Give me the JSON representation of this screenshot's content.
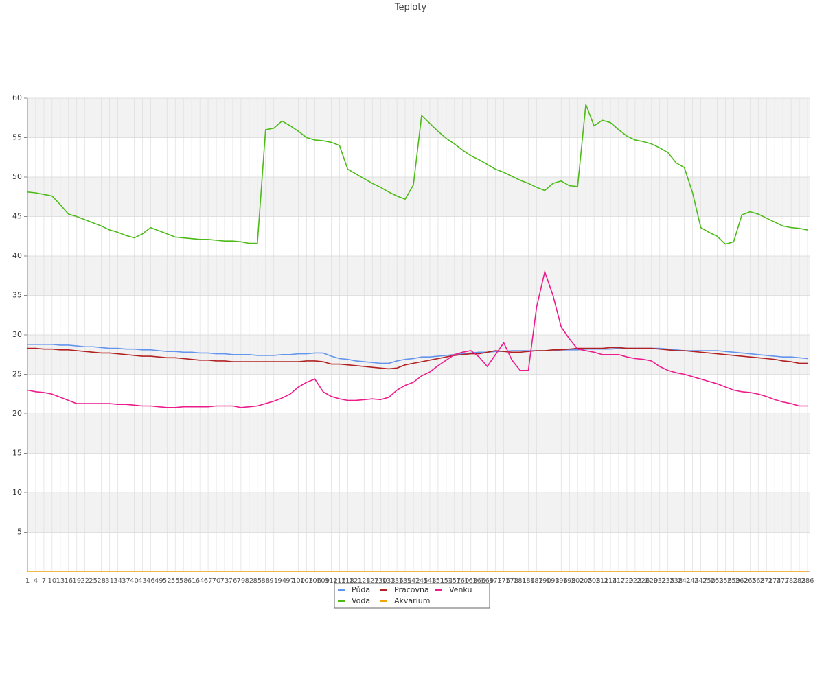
{
  "chart_data": {
    "type": "line",
    "title": "Teploty",
    "x": [
      1,
      4,
      7,
      10,
      13,
      16,
      19,
      22,
      25,
      28,
      31,
      34,
      37,
      40,
      43,
      46,
      49,
      52,
      55,
      58,
      61,
      64,
      67,
      70,
      73,
      76,
      79,
      82,
      85,
      88,
      91,
      94,
      97,
      100,
      103,
      106,
      109,
      112,
      115,
      118,
      121,
      124,
      127,
      130,
      133,
      136,
      139,
      142,
      145,
      148,
      151,
      154,
      157,
      160,
      163,
      166,
      169,
      172,
      175,
      178,
      181,
      184,
      187,
      190,
      193,
      196,
      199,
      202,
      205,
      208,
      211,
      214,
      217,
      220,
      223,
      226,
      229,
      232,
      235,
      238,
      241,
      244,
      247,
      250,
      253,
      256,
      259,
      262,
      265,
      268,
      271,
      274,
      277,
      280,
      283,
      286
    ],
    "xlim": [
      1,
      287
    ],
    "ylim": [
      0,
      60
    ],
    "yticks": [
      5,
      10,
      15,
      20,
      25,
      30,
      35,
      40,
      45,
      50,
      55,
      60
    ],
    "grid": true,
    "legend": "bottom",
    "series": [
      {
        "name": "Půda",
        "color": "#6495ed",
        "values": [
          28.8,
          28.8,
          28.8,
          28.8,
          28.7,
          28.7,
          28.6,
          28.5,
          28.5,
          28.4,
          28.3,
          28.3,
          28.2,
          28.2,
          28.1,
          28.1,
          28.0,
          27.9,
          27.9,
          27.8,
          27.8,
          27.7,
          27.7,
          27.6,
          27.6,
          27.5,
          27.5,
          27.5,
          27.4,
          27.4,
          27.4,
          27.5,
          27.5,
          27.6,
          27.6,
          27.7,
          27.7,
          27.3,
          27.0,
          26.9,
          26.7,
          26.6,
          26.5,
          26.4,
          26.4,
          26.7,
          26.9,
          27.0,
          27.2,
          27.2,
          27.3,
          27.4,
          27.5,
          27.6,
          27.7,
          27.8,
          27.8,
          27.9,
          27.9,
          28.0,
          28.0,
          28.0,
          28.0,
          28.0,
          28.0,
          28.1,
          28.1,
          28.1,
          28.2,
          28.2,
          28.2,
          28.2,
          28.3,
          28.3,
          28.3,
          28.3,
          28.3,
          28.3,
          28.2,
          28.1,
          28.0,
          28.0,
          28.0,
          28.0,
          28.0,
          27.9,
          27.8,
          27.7,
          27.6,
          27.5,
          27.4,
          27.3,
          27.2,
          27.2,
          27.1,
          27.0
        ]
      },
      {
        "name": "Voda",
        "color": "#4cbb17",
        "values": [
          48.1,
          48.0,
          47.8,
          47.6,
          46.5,
          45.3,
          45.0,
          44.6,
          44.2,
          43.8,
          43.3,
          43.0,
          42.6,
          42.3,
          42.8,
          43.6,
          43.2,
          42.8,
          42.4,
          42.3,
          42.2,
          42.1,
          42.1,
          42.0,
          41.9,
          41.9,
          41.8,
          41.6,
          41.6,
          56.0,
          56.2,
          57.1,
          56.5,
          55.8,
          55.0,
          54.7,
          54.6,
          54.4,
          54.0,
          51.0,
          50.4,
          49.8,
          49.2,
          48.7,
          48.1,
          47.6,
          47.2,
          49.0,
          57.8,
          56.8,
          55.8,
          54.9,
          54.2,
          53.4,
          52.7,
          52.2,
          51.6,
          51.0,
          50.6,
          50.1,
          49.6,
          49.2,
          48.7,
          48.3,
          49.2,
          49.5,
          48.9,
          48.8,
          59.2,
          56.5,
          57.2,
          56.9,
          56.0,
          55.2,
          54.7,
          54.5,
          54.2,
          53.7,
          53.1,
          51.8,
          51.2,
          48.0,
          43.6,
          43.0,
          42.5,
          41.5,
          41.8,
          45.2,
          45.6,
          45.3,
          44.8,
          44.3,
          43.8,
          43.6,
          43.5,
          43.3
        ]
      },
      {
        "name": "Pracovna",
        "color": "#b22222",
        "values": [
          28.3,
          28.3,
          28.2,
          28.2,
          28.1,
          28.1,
          28.0,
          27.9,
          27.8,
          27.7,
          27.7,
          27.6,
          27.5,
          27.4,
          27.3,
          27.3,
          27.2,
          27.1,
          27.1,
          27.0,
          26.9,
          26.8,
          26.8,
          26.7,
          26.7,
          26.6,
          26.6,
          26.6,
          26.6,
          26.6,
          26.6,
          26.6,
          26.6,
          26.6,
          26.7,
          26.7,
          26.6,
          26.3,
          26.3,
          26.2,
          26.1,
          26.0,
          25.9,
          25.8,
          25.7,
          25.8,
          26.2,
          26.4,
          26.6,
          26.8,
          27.0,
          27.2,
          27.4,
          27.5,
          27.6,
          27.6,
          27.8,
          28.0,
          27.9,
          27.8,
          27.8,
          27.9,
          28.0,
          28.0,
          28.1,
          28.1,
          28.2,
          28.3,
          28.3,
          28.3,
          28.3,
          28.4,
          28.4,
          28.3,
          28.3,
          28.3,
          28.3,
          28.2,
          28.1,
          28.0,
          28.0,
          27.9,
          27.8,
          27.7,
          27.6,
          27.5,
          27.4,
          27.3,
          27.2,
          27.1,
          27.0,
          26.9,
          26.7,
          26.6,
          26.4,
          26.4
        ]
      },
      {
        "name": "Akvarium",
        "color": "#f0a30a",
        "values": [
          0,
          0,
          0,
          0,
          0,
          0,
          0,
          0,
          0,
          0,
          0,
          0,
          0,
          0,
          0,
          0,
          0,
          0,
          0,
          0,
          0,
          0,
          0,
          0,
          0,
          0,
          0,
          0,
          0,
          0,
          0,
          0,
          0,
          0,
          0,
          0,
          0,
          0,
          0,
          0,
          0,
          0,
          0,
          0,
          0,
          0,
          0,
          0,
          0,
          0,
          0,
          0,
          0,
          0,
          0,
          0,
          0,
          0,
          0,
          0,
          0,
          0,
          0,
          0,
          0,
          0,
          0,
          0,
          0,
          0,
          0,
          0,
          0,
          0,
          0,
          0,
          0,
          0,
          0,
          0,
          0,
          0,
          0,
          0,
          0,
          0,
          0,
          0,
          0,
          0,
          0,
          0,
          0,
          0,
          0,
          0
        ]
      },
      {
        "name": "Venku",
        "color": "#ec1c8c",
        "values": [
          23.0,
          22.8,
          22.7,
          22.5,
          22.1,
          21.7,
          21.3,
          21.3,
          21.3,
          21.3,
          21.3,
          21.2,
          21.2,
          21.1,
          21.0,
          21.0,
          20.9,
          20.8,
          20.8,
          20.9,
          20.9,
          20.9,
          20.9,
          21.0,
          21.0,
          21.0,
          20.8,
          20.9,
          21.0,
          21.3,
          21.6,
          22.0,
          22.5,
          23.4,
          24.0,
          24.4,
          22.8,
          22.2,
          21.9,
          21.7,
          21.7,
          21.8,
          21.9,
          21.8,
          22.1,
          23.0,
          23.6,
          24.0,
          24.8,
          25.3,
          26.1,
          26.8,
          27.5,
          27.8,
          28.0,
          27.2,
          26.0,
          27.5,
          29.0,
          26.8,
          25.5,
          25.5,
          33.5,
          38.0,
          35.0,
          31.0,
          29.5,
          28.2,
          28.0,
          27.8,
          27.5,
          27.5,
          27.5,
          27.2,
          27.0,
          26.9,
          26.7,
          26.0,
          25.5,
          25.2,
          25.0,
          24.7,
          24.4,
          24.1,
          23.8,
          23.4,
          23.0,
          22.8,
          22.7,
          22.5,
          22.2,
          21.8,
          21.5,
          21.3,
          21.0,
          21.0
        ]
      }
    ]
  }
}
